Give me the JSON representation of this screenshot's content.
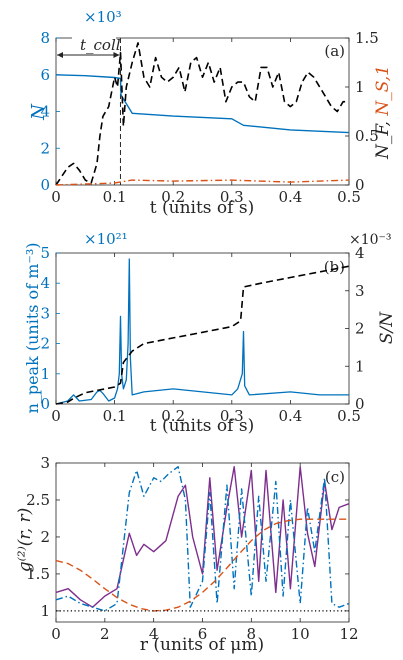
{
  "colors": {
    "blue": "#0072BD",
    "orange": "#D95319",
    "purple": "#7E2F8E",
    "black": "#000000"
  },
  "chart_data": [
    {
      "panel": "(a)",
      "type": "line",
      "xlabel": "t (units of s)",
      "xlim": [
        0,
        0.5
      ],
      "xticks": [
        "0",
        "0.1",
        "0.2",
        "0.3",
        "0.4",
        "0.5"
      ],
      "left_axis": {
        "label": "N",
        "exponent": "×10³",
        "ylim": [
          0,
          8
        ],
        "ticks": [
          "0",
          "2",
          "4",
          "6",
          "8"
        ]
      },
      "right_axis": {
        "label_main": "N_F,",
        "label_second": "N_S,1",
        "ylim": [
          0,
          1.5
        ],
        "ticks": [
          "0",
          "0.5",
          "1",
          "1.5"
        ]
      },
      "annotation": {
        "label": "t_coll",
        "x": 0.11
      },
      "series": [
        {
          "axis": "left",
          "style": "solid",
          "color": "blue",
          "x": [
            0,
            0.05,
            0.1,
            0.11,
            0.111,
            0.13,
            0.2,
            0.3,
            0.32,
            0.4,
            0.5
          ],
          "values": [
            6.0,
            5.95,
            5.85,
            5.8,
            4.9,
            3.9,
            3.75,
            3.6,
            3.25,
            3.0,
            2.85
          ]
        },
        {
          "axis": "right",
          "style": "dashed",
          "color": "black",
          "x": [
            0,
            0.02,
            0.03,
            0.04,
            0.05,
            0.06,
            0.07,
            0.075,
            0.08,
            0.09,
            0.1,
            0.105,
            0.11,
            0.115,
            0.12,
            0.13,
            0.14,
            0.15,
            0.16,
            0.17,
            0.18,
            0.19,
            0.2,
            0.21,
            0.22,
            0.23,
            0.24,
            0.25,
            0.26,
            0.27,
            0.28,
            0.29,
            0.3,
            0.31,
            0.32,
            0.33,
            0.34,
            0.35,
            0.36,
            0.37,
            0.38,
            0.39,
            0.4,
            0.41,
            0.42,
            0.43,
            0.44,
            0.45,
            0.46,
            0.47,
            0.48,
            0.49,
            0.5
          ],
          "values": [
            0.0,
            0.18,
            0.22,
            0.15,
            0.05,
            0.02,
            0.22,
            0.5,
            0.7,
            0.8,
            1.1,
            1.0,
            1.35,
            0.6,
            1.0,
            1.25,
            1.45,
            1.1,
            1.0,
            1.3,
            1.1,
            1.05,
            1.1,
            1.2,
            0.95,
            1.25,
            1.3,
            1.1,
            1.25,
            1.05,
            1.2,
            0.85,
            1.0,
            1.05,
            1.05,
            0.9,
            0.85,
            1.2,
            1.2,
            1.0,
            1.15,
            0.85,
            0.8,
            0.85,
            1.05,
            1.15,
            1.1,
            1.0,
            0.9,
            0.8,
            0.75,
            0.85,
            0.85
          ]
        },
        {
          "axis": "right",
          "style": "dashdot",
          "color": "orange",
          "x": [
            0,
            0.05,
            0.1,
            0.13,
            0.2,
            0.3,
            0.4,
            0.5
          ],
          "values": [
            0.0,
            0.01,
            0.02,
            0.05,
            0.04,
            0.05,
            0.03,
            0.05
          ]
        }
      ]
    },
    {
      "panel": "(b)",
      "type": "line",
      "xlabel": "t (units of s)",
      "xlim": [
        0,
        0.5
      ],
      "xticks": [
        "0",
        "0.1",
        "0.2",
        "0.3",
        "0.4",
        "0.5"
      ],
      "left_axis": {
        "label": "n_peak (units of m⁻³)",
        "exponent": "×10²¹",
        "ylim": [
          0,
          5
        ],
        "ticks": [
          "0",
          "1",
          "2",
          "3",
          "4",
          "5"
        ]
      },
      "right_axis": {
        "label": "S/N",
        "exponent": "×10⁻³",
        "ylim": [
          0,
          4
        ],
        "ticks": [
          "0",
          "1",
          "2",
          "3",
          "4"
        ]
      },
      "series": [
        {
          "axis": "left",
          "style": "solid",
          "color": "blue",
          "x": [
            0,
            0.02,
            0.03,
            0.04,
            0.06,
            0.07,
            0.075,
            0.08,
            0.09,
            0.1,
            0.105,
            0.108,
            0.11,
            0.112,
            0.115,
            0.12,
            0.123,
            0.125,
            0.127,
            0.13,
            0.15,
            0.2,
            0.25,
            0.3,
            0.31,
            0.318,
            0.32,
            0.322,
            0.33,
            0.4,
            0.45,
            0.5
          ],
          "values": [
            0.0,
            0.1,
            0.3,
            0.1,
            0.15,
            0.4,
            0.45,
            0.35,
            0.1,
            0.2,
            0.5,
            1.0,
            2.9,
            1.0,
            0.5,
            0.8,
            2.0,
            4.8,
            1.5,
            0.3,
            0.4,
            0.5,
            0.4,
            0.3,
            0.5,
            1.0,
            2.4,
            0.6,
            0.3,
            0.4,
            0.3,
            0.3
          ]
        },
        {
          "axis": "right",
          "style": "dashed",
          "color": "black",
          "x": [
            0,
            0.02,
            0.03,
            0.05,
            0.1,
            0.11,
            0.115,
            0.12,
            0.13,
            0.15,
            0.2,
            0.25,
            0.3,
            0.315,
            0.32,
            0.35,
            0.4,
            0.45,
            0.5
          ],
          "values": [
            0.0,
            0.05,
            0.15,
            0.3,
            0.45,
            0.55,
            1.1,
            1.2,
            1.4,
            1.6,
            1.75,
            1.9,
            2.05,
            2.2,
            3.1,
            3.2,
            3.35,
            3.5,
            3.65
          ]
        }
      ]
    },
    {
      "panel": "(c)",
      "type": "line",
      "xlabel": "r (units of μm)",
      "ylabel": "g⁽²⁾(r, r)",
      "xlim": [
        0,
        12
      ],
      "ylim": [
        0.85,
        3
      ],
      "xticks": [
        "0",
        "2",
        "4",
        "6",
        "8",
        "10",
        "12"
      ],
      "yticks": [
        "1",
        "1.5",
        "2",
        "2.5",
        "3"
      ],
      "series": [
        {
          "style": "solid",
          "color": "purple",
          "x": [
            0,
            0.5,
            1,
            1.5,
            2,
            2.5,
            3,
            3.3,
            3.6,
            4,
            4.5,
            5,
            5.3,
            5.6,
            6,
            6.3,
            6.6,
            7,
            7.3,
            7.6,
            8,
            8.3,
            8.6,
            9,
            9.3,
            9.6,
            10,
            10.3,
            10.6,
            11,
            11.3,
            11.6,
            12
          ],
          "values": [
            1.25,
            1.3,
            1.15,
            1.05,
            1.2,
            1.3,
            2.05,
            1.75,
            1.9,
            1.8,
            1.95,
            2.55,
            2.7,
            2.0,
            1.5,
            2.8,
            1.55,
            2.4,
            2.95,
            2.0,
            2.9,
            1.4,
            2.9,
            1.25,
            2.5,
            1.3,
            2.95,
            2.05,
            1.6,
            2.75,
            2.1,
            2.4,
            2.45
          ]
        },
        {
          "style": "dashdot",
          "color": "blue",
          "x": [
            0,
            0.5,
            1,
            1.5,
            2,
            2.5,
            3,
            3.3,
            3.6,
            4,
            4.3,
            4.6,
            5,
            5.3,
            5.5,
            6,
            6.3,
            6.6,
            7,
            7.3,
            7.6,
            8,
            8.3,
            8.6,
            9,
            9.3,
            9.6,
            10,
            10.3,
            10.6,
            11,
            11.3,
            11.6,
            12
          ],
          "values": [
            1.15,
            1.2,
            1.1,
            1.05,
            1.0,
            1.1,
            2.6,
            2.9,
            2.55,
            2.8,
            2.75,
            2.85,
            2.95,
            2.5,
            1.05,
            1.4,
            2.6,
            1.1,
            2.7,
            1.3,
            2.65,
            1.2,
            2.55,
            1.4,
            2.75,
            1.2,
            2.5,
            1.1,
            2.4,
            1.8,
            2.8,
            1.1,
            1.05,
            1.1
          ]
        },
        {
          "style": "dashed",
          "color": "orange",
          "x": [
            0,
            0.5,
            1,
            1.5,
            2,
            2.5,
            3,
            3.5,
            4,
            4.5,
            5,
            5.5,
            6,
            6.5,
            7,
            7.5,
            8,
            8.5,
            9,
            9.5,
            10,
            10.5,
            11,
            11.5,
            12
          ],
          "values": [
            1.68,
            1.64,
            1.55,
            1.43,
            1.3,
            1.18,
            1.09,
            1.03,
            1.0,
            1.01,
            1.05,
            1.13,
            1.25,
            1.4,
            1.58,
            1.77,
            1.95,
            2.09,
            2.18,
            2.22,
            2.24,
            2.24,
            2.24,
            2.24,
            2.24
          ]
        },
        {
          "style": "dotted",
          "color": "black",
          "x": [
            0,
            12
          ],
          "values": [
            1,
            1
          ]
        }
      ]
    }
  ]
}
